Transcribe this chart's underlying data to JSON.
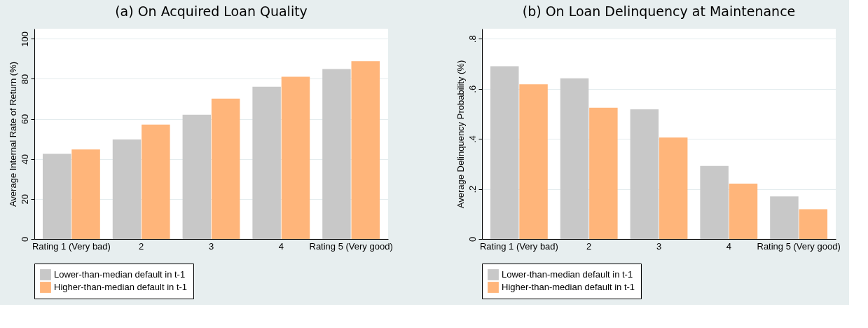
{
  "chart_data": [
    {
      "type": "bar",
      "title": "(a) On Acquired Loan Quality",
      "ylabel": "Average Internal Rate of Return (%)",
      "categories": [
        "Rating 1 (Very bad)",
        "2",
        "3",
        "4",
        "Rating 5 (Very good)"
      ],
      "series": [
        {
          "name": "Lower-than-median default in t-1",
          "color": "#c8c8c8",
          "values": [
            42.5,
            49.7,
            62,
            76,
            84.9
          ]
        },
        {
          "name": "Higher-than-median default in t-1",
          "color": "#ffb57a",
          "values": [
            44.7,
            57.1,
            70.1,
            81,
            88.8
          ]
        }
      ],
      "ylim": [
        0,
        105
      ],
      "yticks": [
        0,
        20,
        40,
        60,
        80,
        100
      ],
      "grid": "y",
      "legend": "bottom"
    },
    {
      "type": "bar",
      "title": "(b) On Loan Delinquency at Maintenance",
      "ylabel": "Average Delinquency Probability (%)",
      "categories": [
        "Rating 1 (Very bad)",
        "2",
        "3",
        "4",
        "Rating 5 (Very good)"
      ],
      "series": [
        {
          "name": "Lower-than-median default in t-1",
          "color": "#c8c8c8",
          "values": [
            0.69,
            0.642,
            0.518,
            0.292,
            0.17
          ]
        },
        {
          "name": "Higher-than-median default in t-1",
          "color": "#ffb57a",
          "values": [
            0.618,
            0.524,
            0.405,
            0.221,
            0.119
          ]
        }
      ],
      "ylim": [
        0,
        0.84
      ],
      "yticks": [
        0,
        {
          "value": 0.2,
          "label": ".2"
        },
        {
          "value": 0.4,
          "label": ".4"
        },
        {
          "value": 0.6,
          "label": ".6"
        },
        {
          "value": 0.8,
          "label": ".8"
        }
      ],
      "grid": "y",
      "legend": "bottom"
    }
  ]
}
